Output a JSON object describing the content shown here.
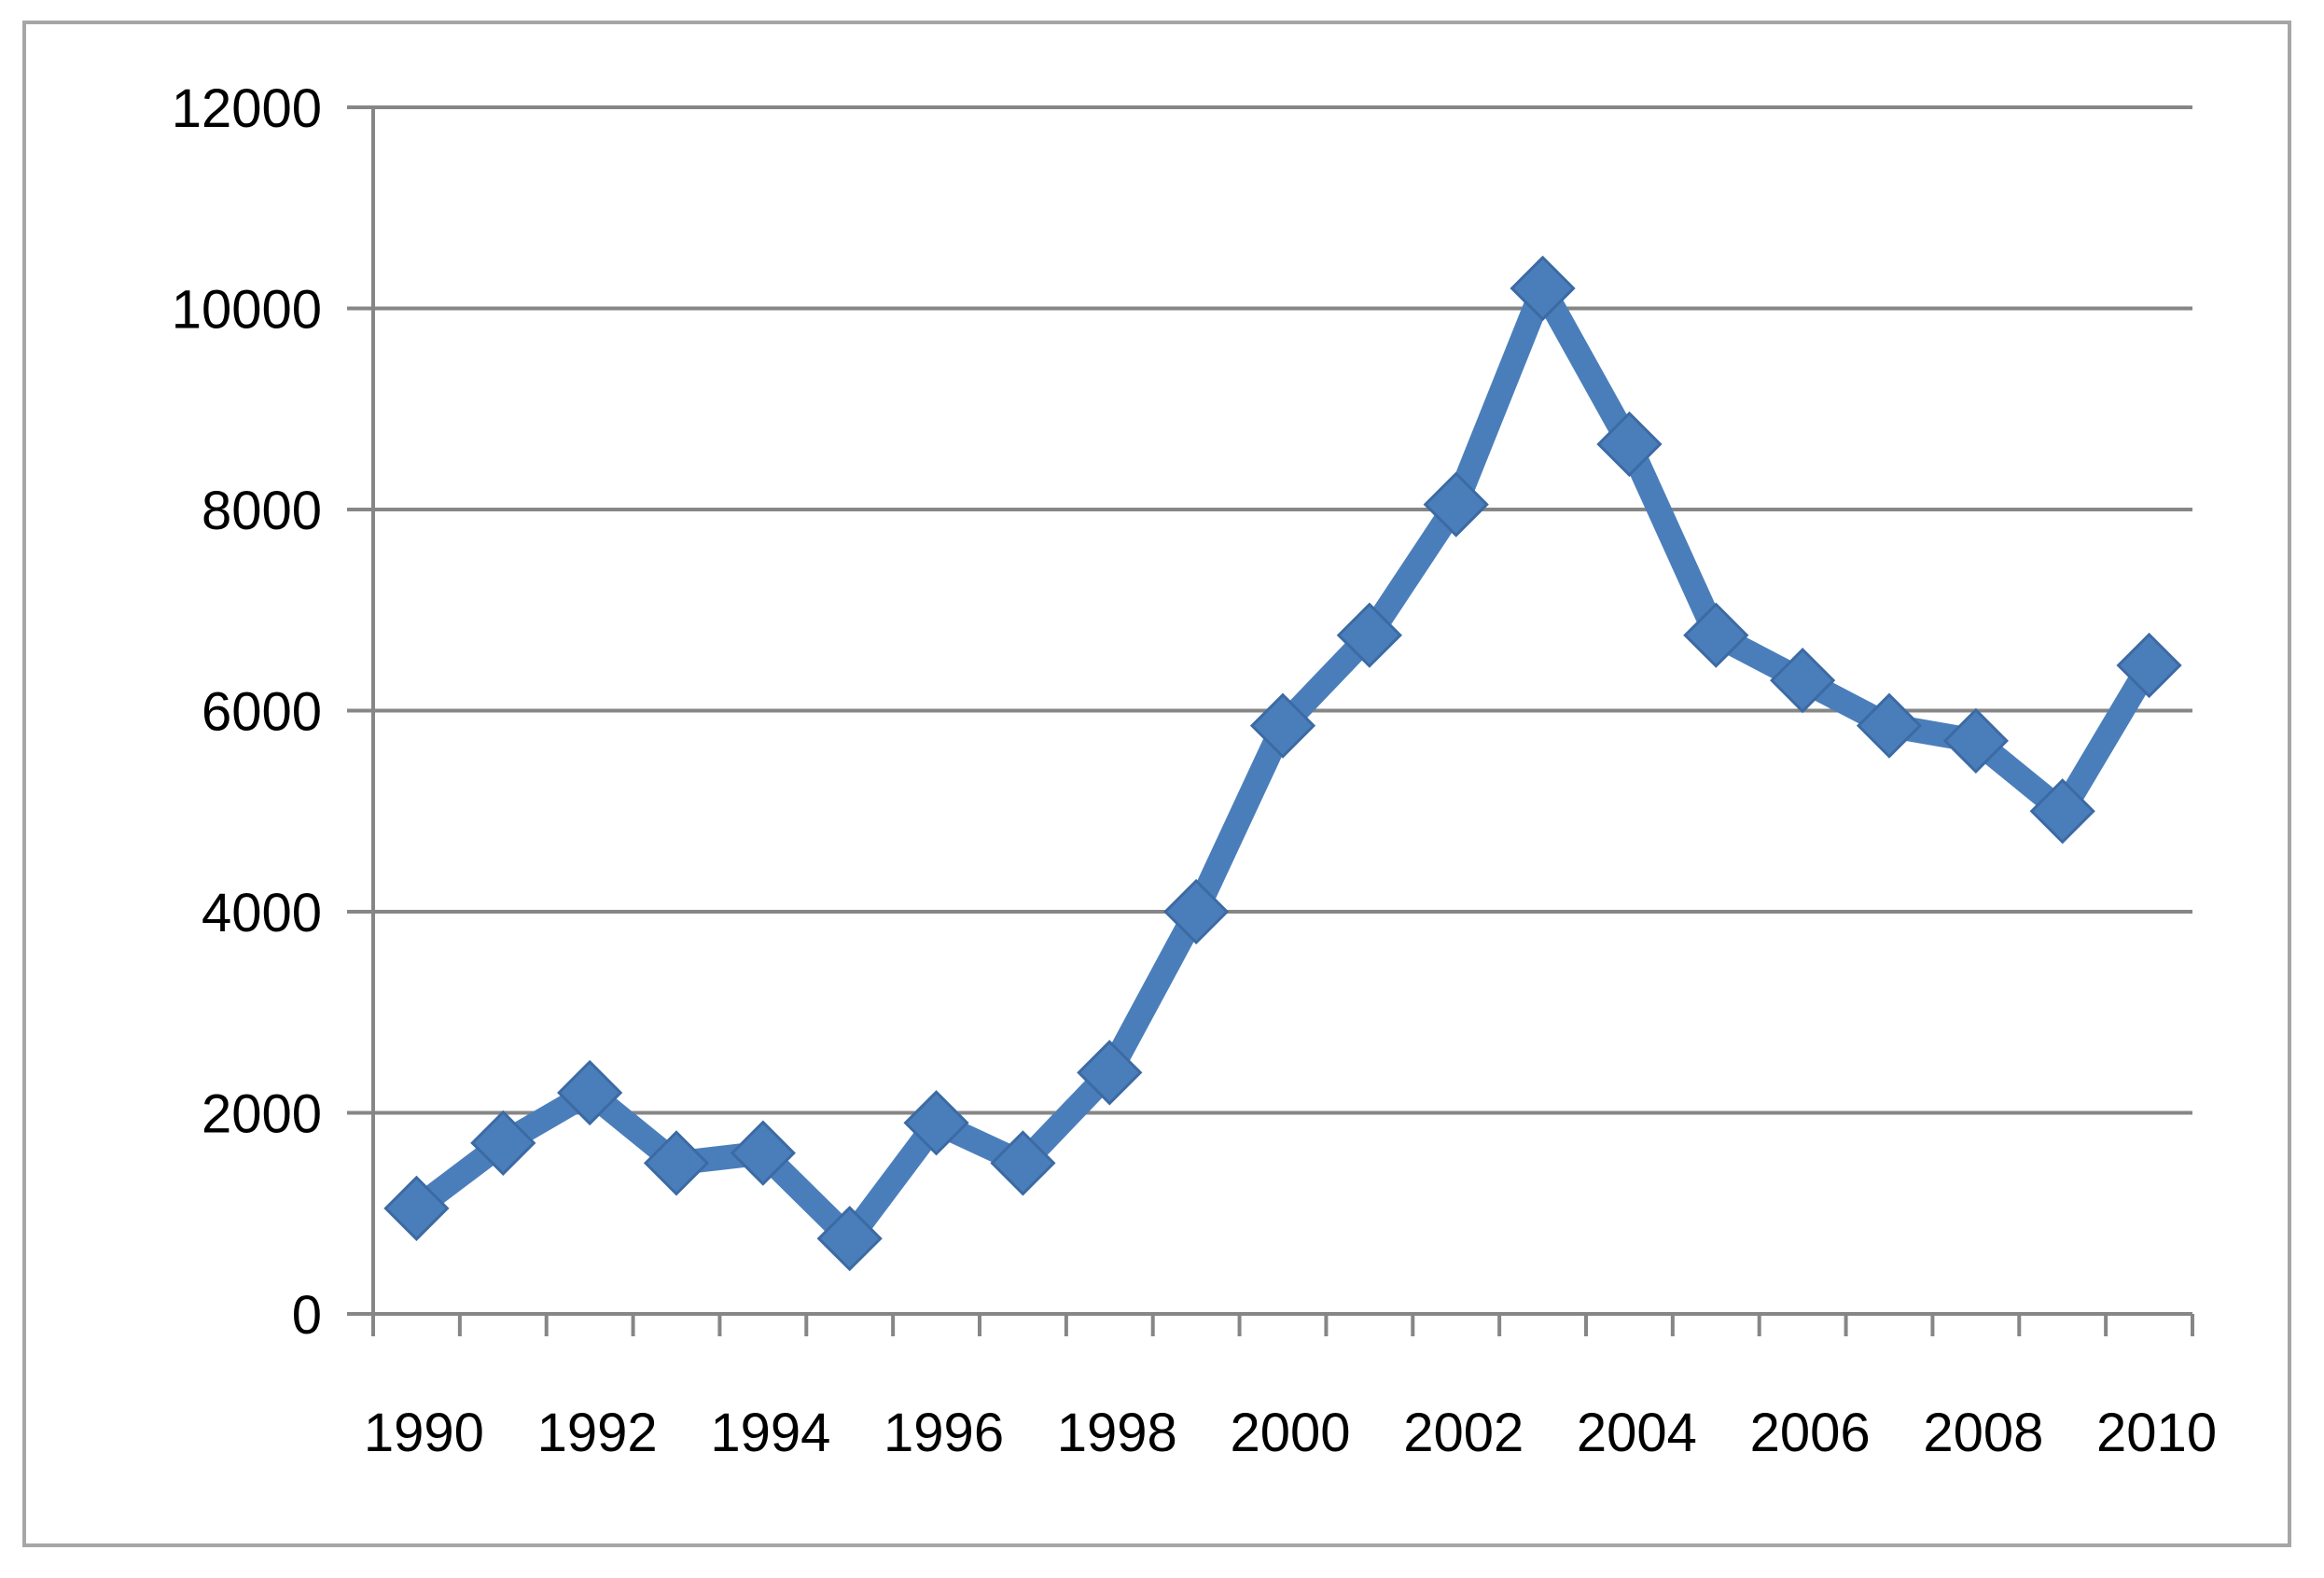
{
  "chart_data": {
    "type": "line",
    "title": "",
    "xlabel": "",
    "ylabel": "",
    "x": [
      1990,
      1991,
      1992,
      1993,
      1994,
      1995,
      1996,
      1997,
      1998,
      1999,
      2000,
      2001,
      2002,
      2003,
      2004,
      2005,
      2006,
      2007,
      2008,
      2009,
      2010
    ],
    "series": [
      {
        "name": "",
        "values": [
          1050,
          1700,
          2200,
          1500,
          1600,
          750,
          1900,
          1500,
          2400,
          4000,
          5850,
          6750,
          8050,
          10200,
          8650,
          6750,
          6300,
          5850,
          5700,
          5000,
          6450
        ]
      }
    ],
    "ylim": [
      0,
      12000
    ],
    "y_ticks": [
      "0",
      "2000",
      "4000",
      "6000",
      "8000",
      "10000",
      "12000"
    ],
    "x_tick_labels": [
      "1990",
      "1992",
      "1994",
      "1996",
      "1998",
      "2000",
      "2002",
      "2004",
      "2006",
      "2008",
      "2010"
    ],
    "grid": "horizontal",
    "legend": "none",
    "colors": {
      "line": "#4a7ebb",
      "gridline": "#868686",
      "axis": "#868686",
      "frame": "#a6a6a6"
    }
  }
}
